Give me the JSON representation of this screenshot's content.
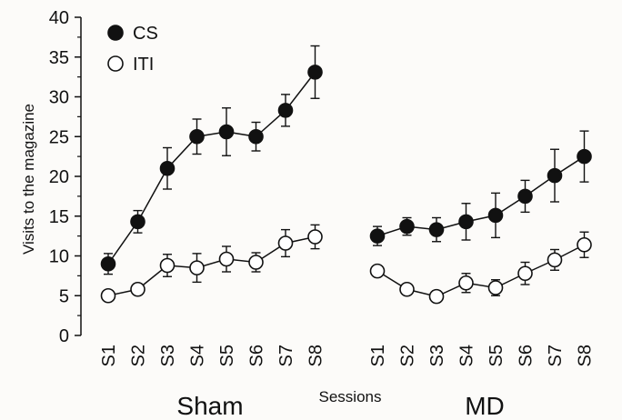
{
  "chart_data": {
    "type": "line",
    "ylabel": "Visits to the magazine",
    "xlabel": "Sessions",
    "ylim": [
      0,
      40
    ],
    "yticks": [
      "0",
      "5",
      "10",
      "15",
      "20",
      "25",
      "30",
      "35",
      "40"
    ],
    "legend": {
      "placement": "top-left",
      "entries": [
        {
          "name": "CS",
          "marker": "filled"
        },
        {
          "name": "ITI",
          "marker": "open"
        }
      ]
    },
    "groups": [
      {
        "name": "Sham",
        "categories": [
          "S1",
          "S2",
          "S3",
          "S4",
          "S5",
          "S6",
          "S7",
          "S8"
        ],
        "series": [
          {
            "name": "CS",
            "values": [
              9.0,
              14.3,
              21.0,
              25.0,
              25.6,
              25.0,
              28.3,
              33.1
            ],
            "errors": [
              1.3,
              1.4,
              2.6,
              2.2,
              3.0,
              1.8,
              2.0,
              3.3
            ]
          },
          {
            "name": "ITI",
            "values": [
              5.0,
              5.8,
              8.8,
              8.5,
              9.6,
              9.2,
              11.6,
              12.4
            ],
            "errors": [
              0.5,
              0.7,
              1.4,
              1.8,
              1.6,
              1.2,
              1.7,
              1.5
            ]
          }
        ]
      },
      {
        "name": "MD",
        "categories": [
          "S1",
          "S2",
          "S3",
          "S4",
          "S5",
          "S6",
          "S7",
          "S8"
        ],
        "series": [
          {
            "name": "CS",
            "values": [
              12.5,
              13.7,
              13.3,
              14.3,
              15.1,
              17.5,
              20.1,
              22.5
            ],
            "errors": [
              1.2,
              1.1,
              1.5,
              2.3,
              2.8,
              2.0,
              3.3,
              3.2
            ]
          },
          {
            "name": "ITI",
            "values": [
              8.1,
              5.8,
              4.9,
              6.6,
              6.0,
              7.8,
              9.5,
              11.4
            ],
            "errors": [
              0.6,
              0.5,
              0.7,
              1.2,
              1.0,
              1.4,
              1.3,
              1.6
            ]
          }
        ]
      }
    ]
  }
}
